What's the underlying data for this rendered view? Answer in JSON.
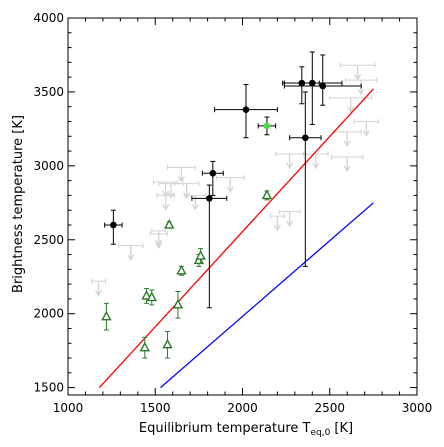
{
  "chart_data": {
    "type": "scatter",
    "title": "",
    "xlabel": "Equilibrium temperature T",
    "xlabel_subscript": "eq,0",
    "xlabel_unit": " [K]",
    "ylabel": "Brightness temperature [K]",
    "xlim": [
      1000,
      3000
    ],
    "ylim": [
      1450,
      4000
    ],
    "xticks": [
      1000,
      1500,
      2000,
      2500,
      3000
    ],
    "yticks": [
      1500,
      2000,
      2500,
      3000,
      3500,
      4000
    ],
    "xtick_labels": [
      "1000",
      "1500",
      "2000",
      "2500",
      "3000"
    ],
    "ytick_labels": [
      "1500",
      "2000",
      "2500",
      "3000",
      "3500",
      "4000"
    ],
    "grid": false,
    "legend": "none",
    "colors": {
      "filled_circles": "#000000",
      "highlight_point": "#44dd44",
      "triangles": "#2a7a2a",
      "upper_limits": "#d3d3d3",
      "red_line": "#ff0000",
      "blue_line": "#0000ff"
    },
    "lines": [
      {
        "color": "red",
        "x": [
          1180,
          2750
        ],
        "y": [
          1500,
          3520
        ]
      },
      {
        "color": "blue",
        "x": [
          1530,
          2750
        ],
        "y": [
          1500,
          2750
        ]
      }
    ],
    "filled_circles": [
      {
        "x": 1260,
        "y": 2600,
        "xerr": 50,
        "yerr_low": 130,
        "yerr_high": 100
      },
      {
        "x": 1810,
        "y": 2780,
        "xerr": 100,
        "yerr_low": 740,
        "yerr_high": 90
      },
      {
        "x": 1830,
        "y": 2950,
        "xerr": 60,
        "yerr_low": 150,
        "yerr_high": 80
      },
      {
        "x": 2020,
        "y": 3380,
        "xerr": 180,
        "yerr_low": 190,
        "yerr_high": 170
      },
      {
        "x": 2340,
        "y": 3560,
        "xerr": 100,
        "yerr_low": 140,
        "yerr_high": 110
      },
      {
        "x": 2360,
        "y": 3190,
        "xerr": 90,
        "yerr_low": 870,
        "yerr_high": 310
      },
      {
        "x": 2400,
        "y": 3560,
        "xerr": 170,
        "yerr_low": 280,
        "yerr_high": 210
      },
      {
        "x": 2460,
        "y": 3540,
        "xerr": 220,
        "yerr_low": 130,
        "yerr_high": 210
      }
    ],
    "highlight_point": {
      "x": 2140,
      "y": 3270,
      "xerr": 50,
      "yerr_low": 60,
      "yerr_high": 60
    },
    "triangles": [
      {
        "x": 1220,
        "y": 1980,
        "yerr": 90
      },
      {
        "x": 1440,
        "y": 1770,
        "yerr": 70
      },
      {
        "x": 1450,
        "y": 2120,
        "yerr": 50
      },
      {
        "x": 1480,
        "y": 2110,
        "yerr": 50
      },
      {
        "x": 1570,
        "y": 1790,
        "yerr": 90
      },
      {
        "x": 1580,
        "y": 2600,
        "yerr": 20
      },
      {
        "x": 1630,
        "y": 2060,
        "yerr": 90
      },
      {
        "x": 1650,
        "y": 2290,
        "yerr": 30
      },
      {
        "x": 1750,
        "y": 2360,
        "yerr": 40
      },
      {
        "x": 1760,
        "y": 2390,
        "yerr": 50
      },
      {
        "x": 2140,
        "y": 2800,
        "yerr": 30
      }
    ],
    "upper_limits": [
      {
        "x": 1175,
        "y": 2220,
        "xerr": 40
      },
      {
        "x": 1360,
        "y": 2460,
        "xerr": 70
      },
      {
        "x": 1520,
        "y": 2540,
        "xerr": 50
      },
      {
        "x": 1520,
        "y": 2560,
        "xerr": 40
      },
      {
        "x": 1560,
        "y": 2890,
        "xerr": 70
      },
      {
        "x": 1560,
        "y": 2800,
        "xerr": 50
      },
      {
        "x": 1590,
        "y": 2880,
        "xerr": 70
      },
      {
        "x": 1650,
        "y": 2990,
        "xerr": 80
      },
      {
        "x": 1680,
        "y": 2880,
        "xerr": 70
      },
      {
        "x": 1730,
        "y": 2800,
        "xerr": 60
      },
      {
        "x": 1930,
        "y": 2920,
        "xerr": 80
      },
      {
        "x": 2200,
        "y": 2660,
        "xerr": 40
      },
      {
        "x": 2270,
        "y": 2690,
        "xerr": 60
      },
      {
        "x": 2270,
        "y": 3080,
        "xerr": 80
      },
      {
        "x": 2420,
        "y": 3080,
        "xerr": 70
      },
      {
        "x": 2600,
        "y": 3060,
        "xerr": 90
      },
      {
        "x": 2600,
        "y": 3230,
        "xerr": 80
      },
      {
        "x": 2620,
        "y": 3460,
        "xerr": 120
      },
      {
        "x": 2660,
        "y": 3680,
        "xerr": 100
      },
      {
        "x": 2680,
        "y": 3580,
        "xerr": 90
      },
      {
        "x": 2710,
        "y": 3300,
        "xerr": 70
      }
    ]
  }
}
